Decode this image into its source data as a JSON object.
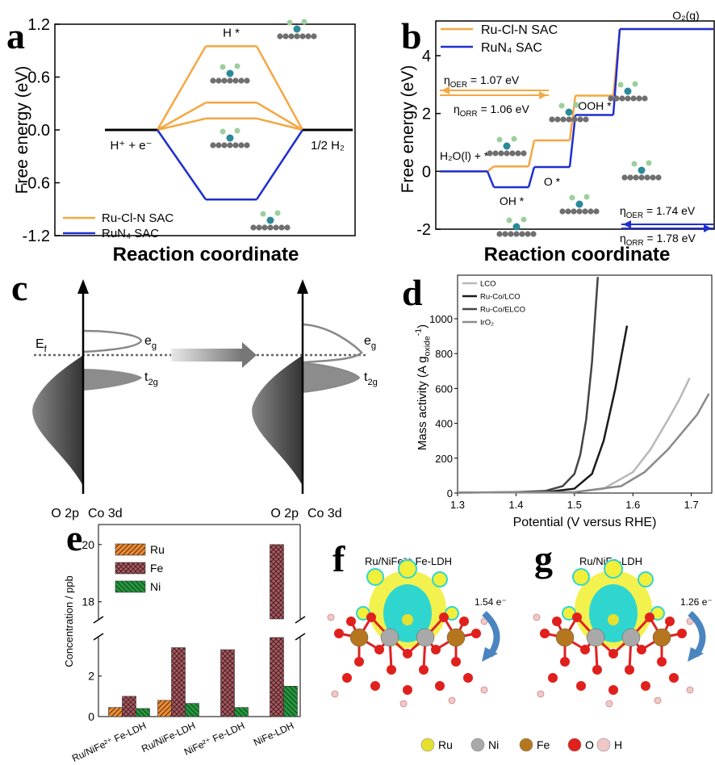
{
  "chart_data": [
    {
      "type": "energy-levels",
      "panel": "a",
      "ylabel": "Free energy (eV)",
      "xlabel": "Reaction coordinate",
      "categories": [
        "H⁺ + e⁻",
        "H *",
        "1/2 H₂"
      ],
      "ylim": [
        -1.2,
        1.2
      ],
      "yticks": [
        -1.2,
        -0.6,
        {
          "value": 0,
          "label": "0.0"
        },
        0.6,
        1.2
      ],
      "level_color": "#000000",
      "legend": "lower left",
      "series": [
        {
          "name": "Ru-Cl-N SAC",
          "color": "#f5a742",
          "values": [
            0,
            0.95,
            0
          ]
        },
        {
          "color": "#f5a742",
          "values": [
            0,
            0.31,
            0
          ]
        },
        {
          "color": "#f5a742",
          "values": [
            0,
            0.13,
            0
          ]
        },
        {
          "name": "RuN₄ SAC",
          "color": "#1f2fcf",
          "values": [
            0,
            -0.79,
            0
          ]
        }
      ]
    },
    {
      "type": "energy-steps",
      "panel": "b",
      "ylabel": "Free energy (eV)",
      "xlabel": "Reaction coordinate",
      "categories": [
        "H₂O(l) + *",
        "OH *",
        "O *",
        "OOH *",
        "O₂(g)"
      ],
      "ylim": [
        -2,
        5.2
      ],
      "yticks": [
        -2,
        0,
        2,
        4
      ],
      "legend": "upper left",
      "series": [
        {
          "name": "Ru-Cl-N SAC",
          "color": "#f5a742",
          "values": [
            0,
            0.17,
            1.07,
            2.62,
            4.92
          ]
        },
        {
          "name": "RuN₄ SAC",
          "color": "#1f2fcf",
          "values": [
            0,
            -0.55,
            0.15,
            1.95,
            4.92
          ]
        }
      ],
      "annotations": [
        {
          "symbol": "η",
          "subscript": "OER",
          "text": " = 1.07 eV"
        },
        {
          "symbol": "η",
          "subscript": "ORR",
          "text": " = 1.06 eV"
        },
        {
          "symbol": "η",
          "subscript": "OER",
          "text": " = 1.74 eV"
        },
        {
          "symbol": "η",
          "subscript": "ORR",
          "text": " = 1.78 eV"
        }
      ]
    },
    {
      "type": "line",
      "panel": "d",
      "xlabel": "Potential (V versus RHE)",
      "ylabel": {
        "text": "Mass activity (A g",
        "subscript": "oxide",
        "superscript": "-1",
        "end": ")"
      },
      "xlim": [
        1.3,
        1.735
      ],
      "xticks": [
        1.3,
        1.4,
        1.5,
        1.6,
        1.7
      ],
      "ylim": [
        0,
        1250
      ],
      "yticks": [
        0,
        200,
        400,
        600,
        800,
        1000
      ],
      "legend": "upper left",
      "series": [
        {
          "name": "LCO",
          "color": "#b8b8b8",
          "x": [
            1.3,
            1.5,
            1.55,
            1.6,
            1.63,
            1.66,
            1.68,
            1.697
          ],
          "values": [
            3,
            5,
            25,
            120,
            250,
            420,
            540,
            660
          ]
        },
        {
          "name": "Ru-Co/LCO",
          "color": "#1a1a1a",
          "x": [
            1.3,
            1.45,
            1.5,
            1.53,
            1.55,
            1.57,
            1.58,
            1.59
          ],
          "values": [
            3,
            5,
            25,
            110,
            300,
            600,
            780,
            960
          ]
        },
        {
          "name": "Ru-Co/ELCO",
          "color": "#444444",
          "x": [
            1.3,
            1.4,
            1.45,
            1.48,
            1.5,
            1.51,
            1.52,
            1.53,
            1.54
          ],
          "values": [
            3,
            5,
            12,
            40,
            110,
            220,
            420,
            750,
            1240
          ]
        },
        {
          "name": "IrO₂",
          "color": "#8a8a8a",
          "x": [
            1.3,
            1.5,
            1.58,
            1.62,
            1.66,
            1.69,
            1.71,
            1.73
          ],
          "values": [
            3,
            5,
            40,
            120,
            250,
            370,
            450,
            570
          ]
        }
      ]
    },
    {
      "type": "grouped-bar",
      "panel": "e",
      "ylabel": "Concentration / ppb",
      "categories": [
        "Ru/NiFe²⁺ Fe-LDH",
        "Ru/NiFe-LDH",
        "NiFe²⁺ Fe-LDH",
        "NiFe-LDH"
      ],
      "ylim": [
        0,
        20.7
      ],
      "ybreak": [
        3.9,
        17.4
      ],
      "yticks": [
        0,
        2,
        18,
        20
      ],
      "legend": "upper left",
      "series": [
        {
          "name": "Ru",
          "color": "#f28a2e",
          "hatch": "forward",
          "values": [
            0.45,
            0.8,
            null,
            null
          ]
        },
        {
          "name": "Fe",
          "color": "#b5545c",
          "hatch": "cross",
          "values": [
            1.0,
            3.4,
            3.3,
            20.0
          ]
        },
        {
          "name": "Ni",
          "color": "#1f9a3a",
          "hatch": "back",
          "values": [
            0.4,
            0.65,
            0.45,
            1.5
          ]
        }
      ]
    }
  ],
  "schematic": {
    "panel": "c",
    "fermi": {
      "text": "E",
      "subscript": "f"
    },
    "states": [
      {
        "text": "e",
        "subscript": "g"
      },
      {
        "text": "t",
        "subscript": "2g"
      }
    ],
    "axes": [
      "O 2p",
      "Co 3d"
    ]
  },
  "structures": {
    "panels": [
      {
        "panel": "f",
        "title": "Ru/NiFe²⁺ Fe-LDH",
        "charge": "1.54 e⁻"
      },
      {
        "panel": "g",
        "title": "Ru/NiFe-LDH",
        "charge": "1.26 e⁻"
      }
    ],
    "legend": [
      {
        "name": "Ru",
        "color": "#e6e02e"
      },
      {
        "name": "Ni",
        "color": "#a9a9a9"
      },
      {
        "name": "Fe",
        "color": "#b5761e"
      },
      {
        "name": "O",
        "color": "#e0201c"
      },
      {
        "name": "H",
        "color": "#f0c8c8"
      }
    ]
  }
}
